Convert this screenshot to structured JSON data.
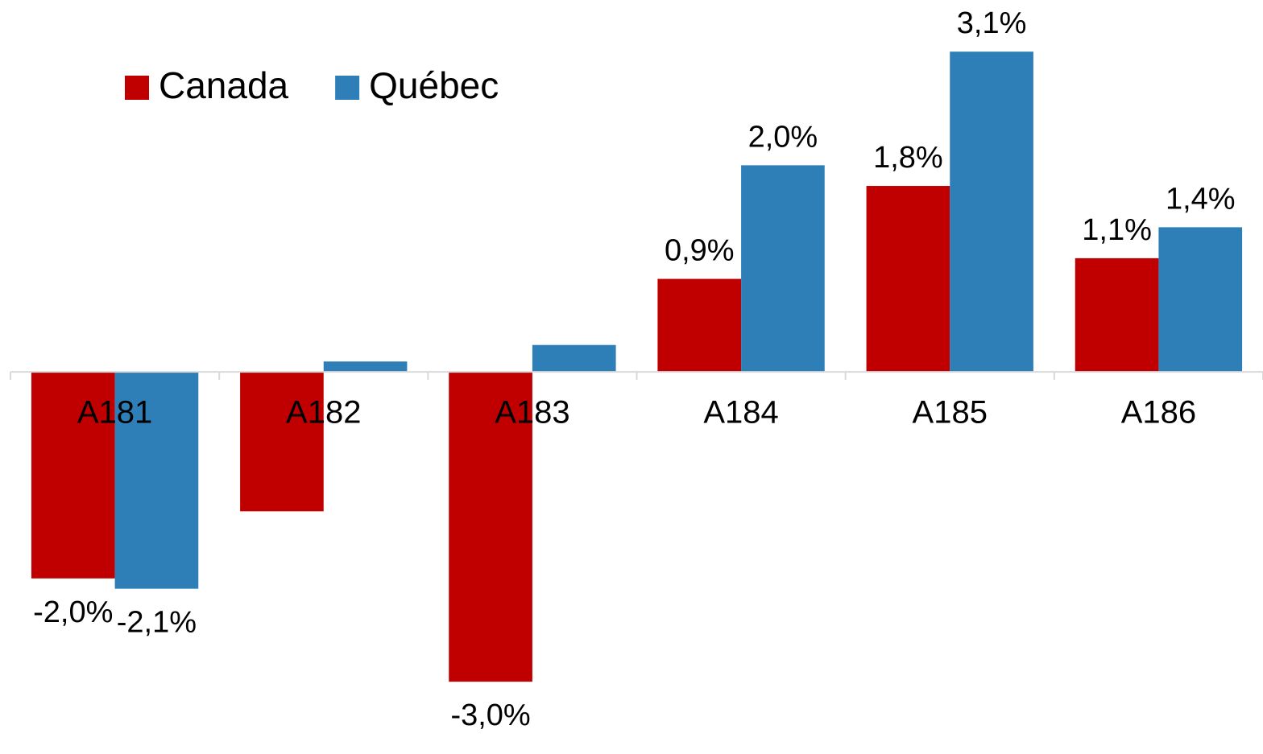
{
  "chart_data": {
    "type": "bar",
    "categories": [
      "A181",
      "A182",
      "A183",
      "A184",
      "A185",
      "A186"
    ],
    "series": [
      {
        "name": "Canada",
        "color": "#c00000",
        "values": [
          -2.0,
          -1.35,
          -3.0,
          0.9,
          1.8,
          1.1
        ],
        "value_labels": [
          "-2,0%",
          null,
          "-3,0%",
          "0,9%",
          "1,8%",
          "1,1%"
        ]
      },
      {
        "name": "Québec",
        "color": "#2e7fb8",
        "values": [
          -2.1,
          0.1,
          0.26,
          2.0,
          3.1,
          1.4
        ],
        "value_labels": [
          "-2,1%",
          null,
          null,
          "2,0%",
          "3,1%",
          "1,4%"
        ]
      }
    ],
    "ylim": [
      -3.7,
      3.6
    ],
    "legend": "top-left"
  }
}
